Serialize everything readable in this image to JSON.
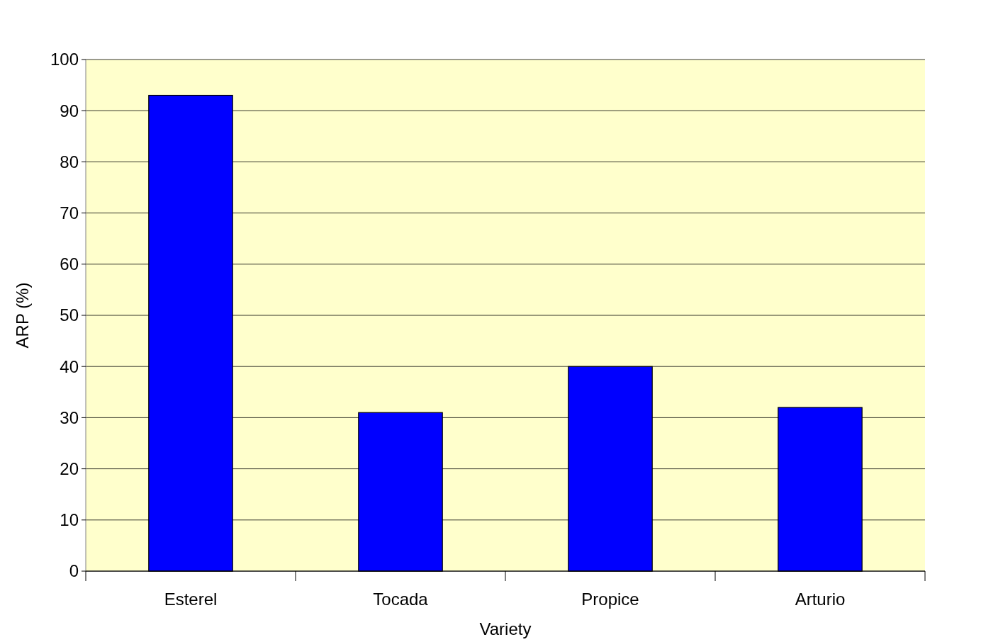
{
  "chart_data": {
    "type": "bar",
    "xlabel": "Variety",
    "ylabel": "ARP (%)",
    "categories": [
      "Esterel",
      "Tocada",
      "Propice",
      "Arturio"
    ],
    "values": [
      93,
      31,
      40,
      32
    ],
    "color": "#0000ff",
    "ylim": [
      0,
      100
    ],
    "yticks": [
      0,
      10,
      20,
      30,
      40,
      50,
      60,
      70,
      80,
      90,
      100
    ],
    "grid": "y"
  }
}
